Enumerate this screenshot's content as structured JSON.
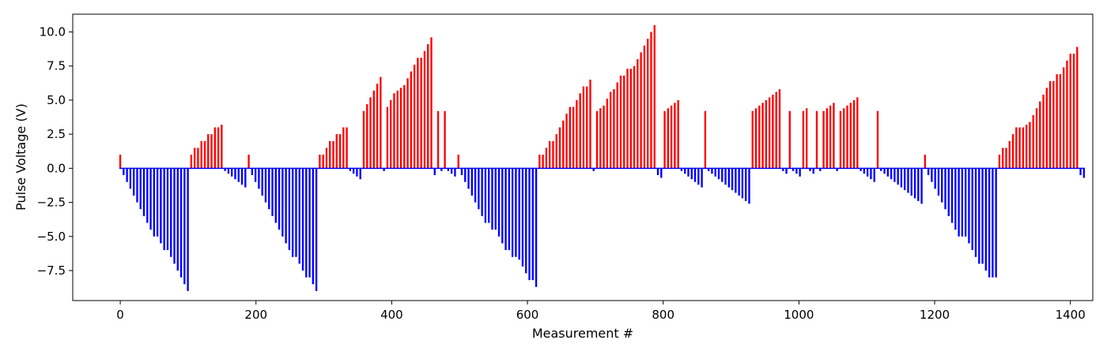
{
  "chart_data": {
    "type": "bar",
    "title": "",
    "xlabel": "Measurement #",
    "ylabel": "Pulse Voltage (V)",
    "xlim": [
      -70,
      1433
    ],
    "ylim": [
      -9.7,
      11.3
    ],
    "xticks": [
      0,
      200,
      400,
      600,
      800,
      1000,
      1200,
      1400
    ],
    "xtick_labels": [
      "0",
      "200",
      "400",
      "600",
      "800",
      "1000",
      "1200",
      "1400"
    ],
    "yticks": [
      -7.5,
      -5.0,
      -2.5,
      0.0,
      2.5,
      5.0,
      7.5,
      10.0
    ],
    "ytick_labels": [
      "−7.5",
      "−5.0",
      "−2.5",
      "0.0",
      "2.5",
      "5.0",
      "7.5",
      "10.0"
    ],
    "grid": false,
    "colors": {
      "positive": "#ff0000",
      "negative": "#0000ff"
    },
    "values": [
      1.0,
      -0.5,
      -1.0,
      -1.5,
      -2.0,
      -2.5,
      -3.0,
      -3.5,
      -4.0,
      -4.5,
      -5.0,
      -5.0,
      -5.5,
      -6.0,
      -6.0,
      -6.5,
      -7.0,
      -7.5,
      -8.0,
      -8.5,
      -9.0,
      1.0,
      1.5,
      1.5,
      2.0,
      2.0,
      2.5,
      2.5,
      3.0,
      3.0,
      3.2,
      -0.2,
      -0.4,
      -0.6,
      -0.8,
      -1.0,
      -1.2,
      -1.4,
      1.0,
      -0.5,
      -1.0,
      -1.5,
      -2.0,
      -2.5,
      -3.0,
      -3.5,
      -4.0,
      -4.5,
      -5.0,
      -5.5,
      -6.0,
      -6.5,
      -6.5,
      -7.0,
      -7.5,
      -8.0,
      -8.0,
      -8.5,
      -9.0,
      1.0,
      1.0,
      1.5,
      2.0,
      2.0,
      2.5,
      2.5,
      3.0,
      3.0,
      -0.2,
      -0.4,
      -0.6,
      -0.8,
      4.2,
      4.7,
      5.2,
      5.7,
      6.2,
      6.7,
      -0.2,
      4.5,
      5.0,
      5.5,
      5.7,
      5.9,
      6.1,
      6.6,
      7.1,
      7.6,
      8.1,
      8.1,
      8.6,
      9.1,
      9.6,
      -0.5,
      4.2,
      -0.2,
      4.2,
      -0.2,
      -0.4,
      -0.6,
      1.0,
      -0.5,
      -1.0,
      -1.5,
      -2.0,
      -2.5,
      -3.0,
      -3.5,
      -4.0,
      -4.0,
      -4.5,
      -4.5,
      -5.0,
      -5.5,
      -6.0,
      -6.0,
      -6.5,
      -6.5,
      -6.7,
      -7.2,
      -7.7,
      -8.2,
      -8.2,
      -8.7,
      1.0,
      1.0,
      1.5,
      2.0,
      2.0,
      2.5,
      3.0,
      3.5,
      4.0,
      4.5,
      4.5,
      5.0,
      5.5,
      6.0,
      6.0,
      6.5,
      -0.2,
      4.2,
      4.4,
      4.6,
      5.1,
      5.6,
      5.8,
      6.3,
      6.8,
      6.8,
      7.3,
      7.3,
      7.5,
      8.0,
      8.5,
      9.0,
      9.5,
      10.0,
      10.5,
      -0.5,
      -0.7,
      4.2,
      4.4,
      4.6,
      4.8,
      5.0,
      -0.2,
      -0.4,
      -0.6,
      -0.8,
      -1.0,
      -1.2,
      -1.4,
      4.2,
      -0.2,
      -0.4,
      -0.6,
      -0.8,
      -1.0,
      -1.2,
      -1.4,
      -1.6,
      -1.8,
      -2.0,
      -2.2,
      -2.4,
      -2.6,
      4.2,
      4.4,
      4.6,
      4.8,
      5.0,
      5.2,
      5.4,
      5.6,
      5.8,
      -0.2,
      -0.4,
      4.2,
      -0.2,
      -0.4,
      -0.6,
      4.2,
      4.4,
      -0.2,
      -0.4,
      4.2,
      -0.2,
      4.2,
      4.4,
      4.6,
      4.8,
      -0.2,
      4.2,
      4.4,
      4.6,
      4.8,
      5.0,
      5.2,
      -0.2,
      -0.4,
      -0.6,
      -0.8,
      -1.0,
      4.2,
      -0.2,
      -0.4,
      -0.6,
      -0.8,
      -1.0,
      -1.2,
      -1.4,
      -1.6,
      -1.8,
      -2.0,
      -2.2,
      -2.4,
      -2.6,
      1.0,
      -0.5,
      -1.0,
      -1.5,
      -2.0,
      -2.5,
      -3.0,
      -3.5,
      -4.0,
      -4.5,
      -5.0,
      -5.0,
      -5.0,
      -5.5,
      -6.0,
      -6.5,
      -7.0,
      -7.0,
      -7.5,
      -8.0,
      -8.0,
      -8.0,
      1.0,
      1.5,
      1.5,
      2.0,
      2.5,
      3.0,
      3.0,
      3.0,
      3.2,
      3.4,
      3.9,
      4.4,
      4.9,
      5.4,
      5.9,
      6.4,
      6.4,
      6.9,
      6.9,
      7.4,
      7.9,
      8.4,
      8.4,
      8.9,
      -0.5,
      -0.7
    ]
  }
}
